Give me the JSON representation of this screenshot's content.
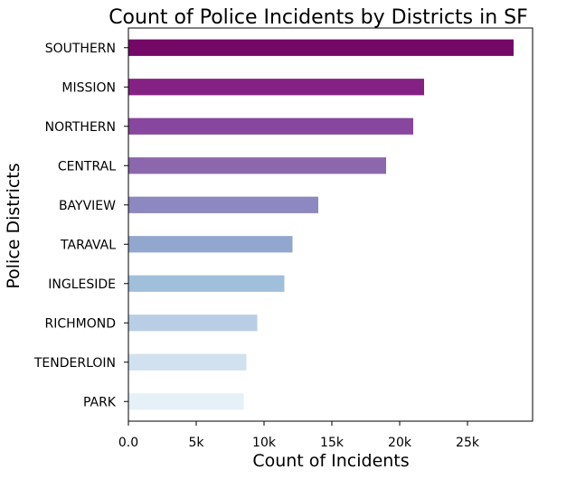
{
  "chart_data": {
    "type": "bar",
    "orientation": "horizontal",
    "title": "Count of Police Incidents by Districts in SF",
    "xlabel": "Count of Incidents",
    "ylabel": "Police Districts",
    "categories": [
      "SOUTHERN",
      "MISSION",
      "NORTHERN",
      "CENTRAL",
      "BAYVIEW",
      "TARAVAL",
      "INGLESIDE",
      "RICHMOND",
      "TENDERLOIN",
      "PARK"
    ],
    "values": [
      28400,
      21800,
      21000,
      19000,
      14000,
      12100,
      11500,
      9500,
      8700,
      8500
    ],
    "colors": [
      "#730867",
      "#852184",
      "#88479e",
      "#8c67ad",
      "#8c88c0",
      "#91a7cd",
      "#a0bfdb",
      "#b9cee5",
      "#d1e1ef",
      "#e6f0f7"
    ],
    "xlim": [
      0,
      29800
    ],
    "xticks": [
      {
        "value": 0,
        "label": "0.0"
      },
      {
        "value": 5000,
        "label": "5k"
      },
      {
        "value": 10000,
        "label": "10k"
      },
      {
        "value": 15000,
        "label": "15k"
      },
      {
        "value": 20000,
        "label": "20k"
      },
      {
        "value": 25000,
        "label": "25k"
      }
    ],
    "grid": false,
    "legend": "none"
  }
}
